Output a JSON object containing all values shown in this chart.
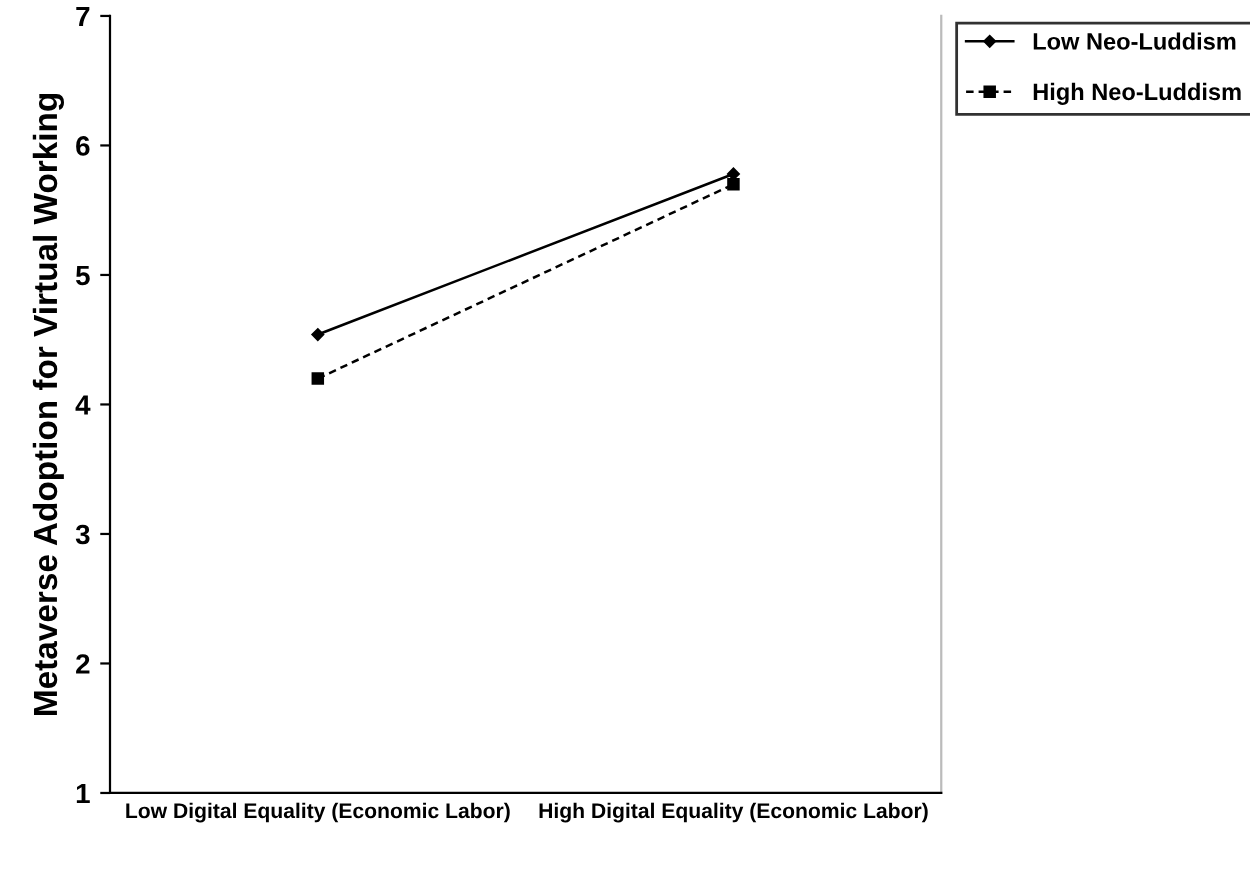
{
  "chart_data": {
    "type": "line",
    "ylabel": "Metaverse Adoption for Virtual Working",
    "categories": [
      "Low Digital Equality (Economic Labor)",
      "High Digital Equality (Economic Labor)"
    ],
    "series": [
      {
        "name": "Low Neo-Luddism",
        "color": "#000000",
        "values": [
          4.54,
          5.78
        ],
        "marker": "diamond",
        "line_style": "solid"
      },
      {
        "name": "High Neo-Luddism",
        "color": "#000000",
        "values": [
          4.2,
          5.7
        ],
        "marker": "square",
        "line_style": "dashed"
      }
    ],
    "ylim": [
      1,
      7
    ],
    "yticks": [
      1,
      2,
      3,
      4,
      5,
      6,
      7
    ],
    "grid": false,
    "legend": "top right"
  }
}
